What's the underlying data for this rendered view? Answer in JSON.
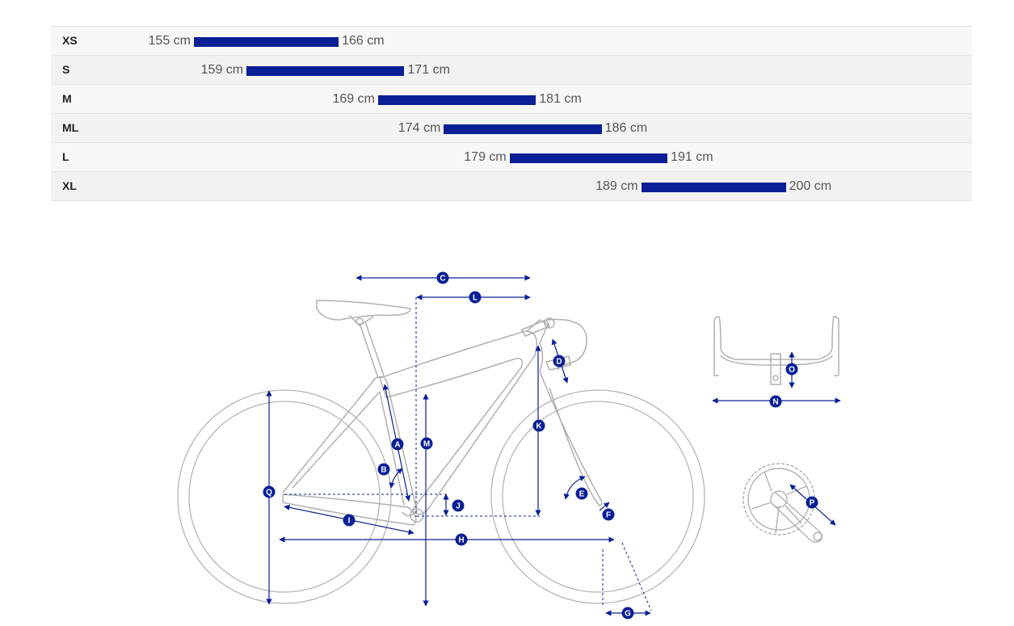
{
  "size_chart": {
    "rows": [
      {
        "size": "XS",
        "min": "155 cm",
        "max": "166 cm",
        "min_cm": 155,
        "max_cm": 166
      },
      {
        "size": "S",
        "min": "159 cm",
        "max": "171 cm",
        "min_cm": 159,
        "max_cm": 171
      },
      {
        "size": "M",
        "min": "169 cm",
        "max": "181 cm",
        "min_cm": 169,
        "max_cm": 181
      },
      {
        "size": "ML",
        "min": "174 cm",
        "max": "186 cm",
        "min_cm": 174,
        "max_cm": 186
      },
      {
        "size": "L",
        "min": "179 cm",
        "max": "191 cm",
        "min_cm": 179,
        "max_cm": 191
      },
      {
        "size": "XL",
        "min": "189 cm",
        "max": "200 cm",
        "min_cm": 189,
        "max_cm": 200
      }
    ],
    "bar_color": "#0a1f96"
  },
  "geometry_diagram": {
    "labels": [
      "A",
      "B",
      "C",
      "D",
      "E",
      "F",
      "G",
      "H",
      "I",
      "J",
      "K",
      "L",
      "M",
      "N",
      "O",
      "P",
      "Q"
    ],
    "line_color": "#b0b0b0",
    "marker_color": "#0a1f96"
  }
}
